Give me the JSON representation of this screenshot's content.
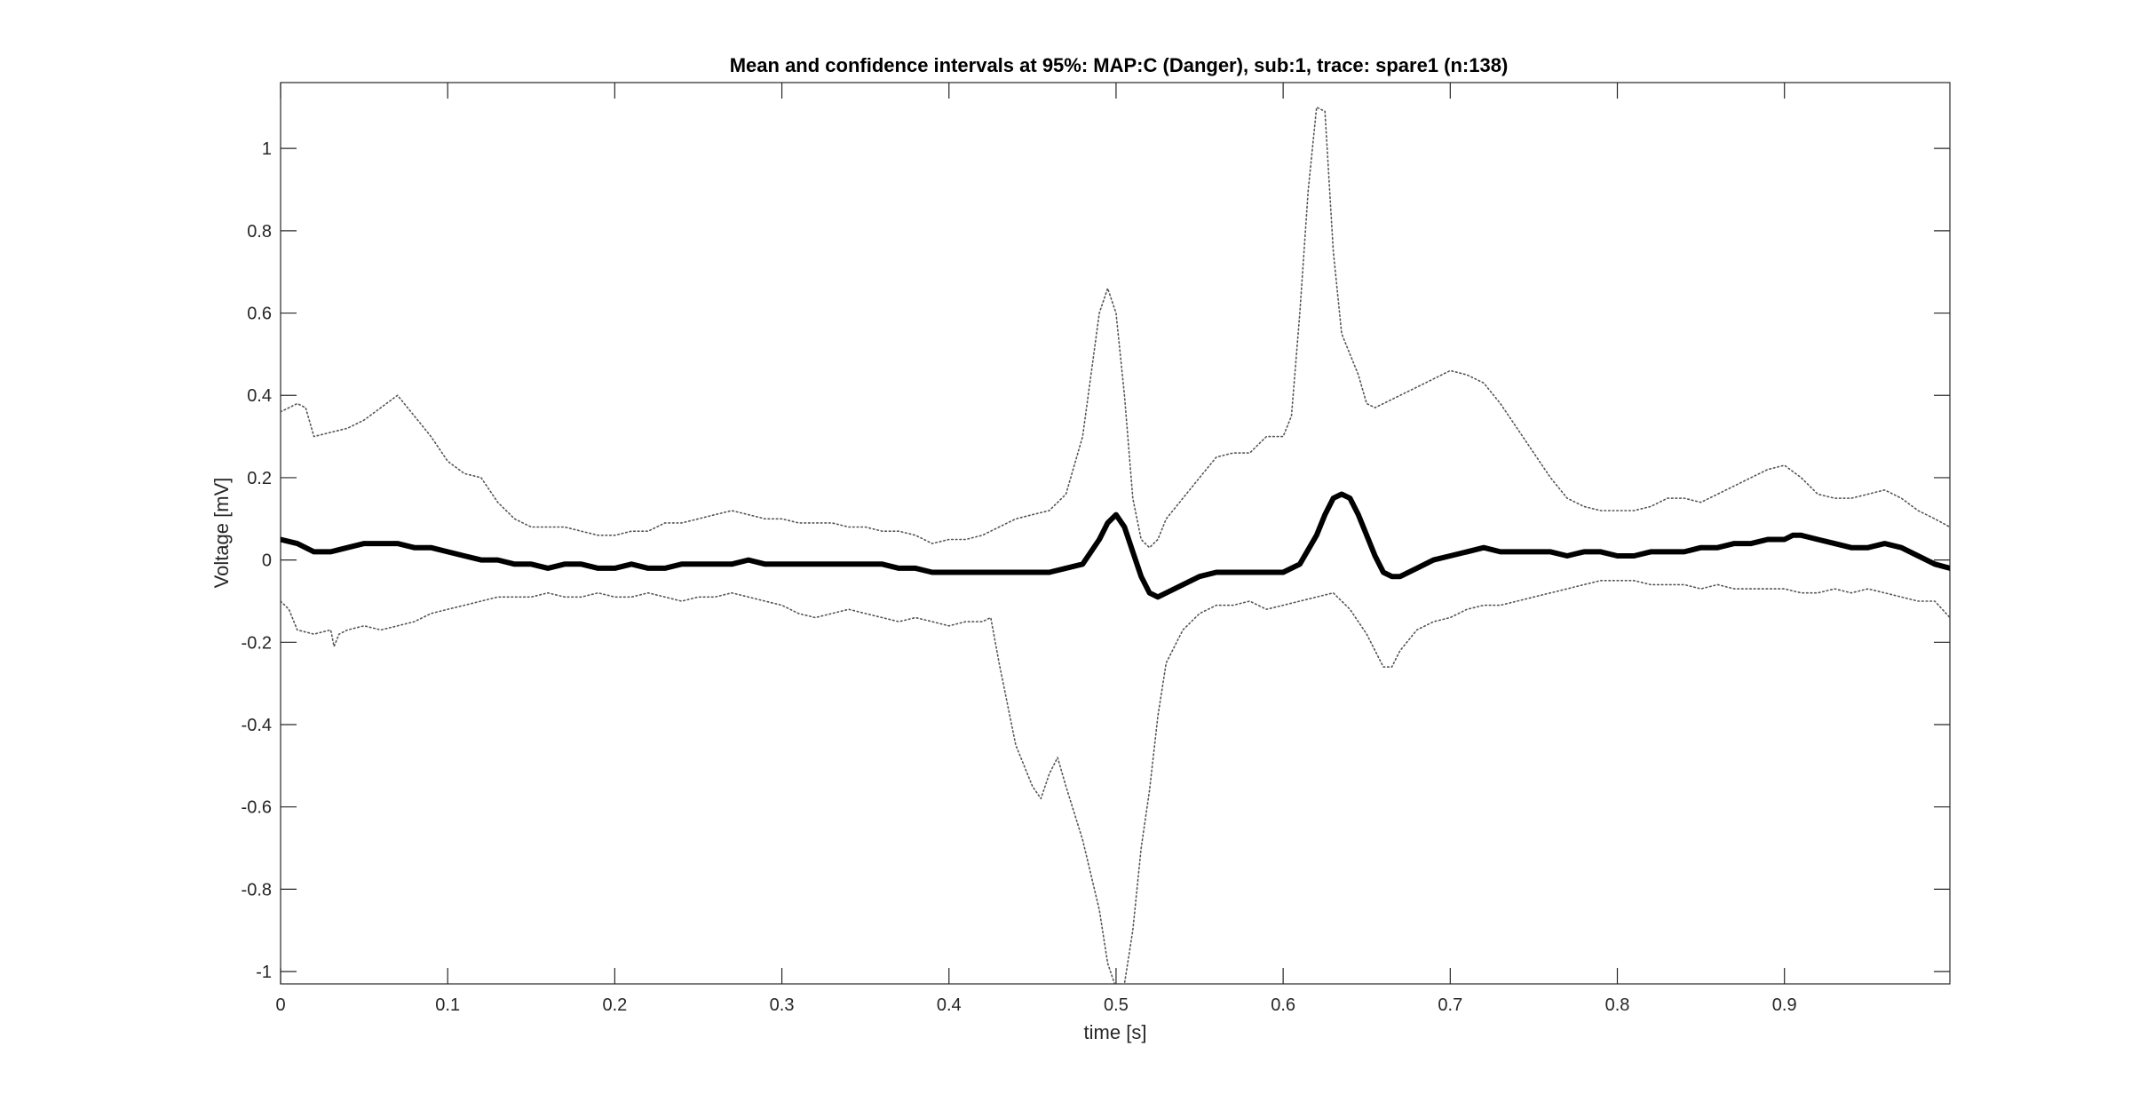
{
  "chart_data": {
    "type": "line",
    "title": "Mean and confidence intervals at 95%: MAP:C (Danger), sub:1, trace: spare1 (n:138)",
    "xlabel": "time [s]",
    "ylabel": "Voltage [mV]",
    "xlim": [
      0,
      0.999
    ],
    "ylim": [
      -1.03,
      1.16
    ],
    "xticks": [
      0,
      0.1,
      0.2,
      0.3,
      0.4,
      0.5,
      0.6,
      0.7,
      0.8,
      0.9
    ],
    "xtick_labels": [
      "0",
      "0.1",
      "0.2",
      "0.3",
      "0.4",
      "0.5",
      "0.6",
      "0.7",
      "0.8",
      "0.9"
    ],
    "yticks": [
      -1,
      -0.8,
      -0.6,
      -0.4,
      -0.2,
      0,
      0.2,
      0.4,
      0.6,
      0.8,
      1
    ],
    "ytick_labels": [
      "-1",
      "-0.8",
      "-0.6",
      "-0.4",
      "-0.2",
      "0",
      "0.2",
      "0.4",
      "0.6",
      "0.8",
      "1"
    ],
    "grid": false,
    "colors": {
      "mean": "#000000",
      "ci": "#555555",
      "axes": "#262626"
    },
    "series": [
      {
        "role": "mean",
        "style": "solid-thick",
        "x": [
          0,
          0.01,
          0.02,
          0.03,
          0.04,
          0.05,
          0.06,
          0.07,
          0.08,
          0.09,
          0.1,
          0.11,
          0.12,
          0.13,
          0.14,
          0.15,
          0.16,
          0.17,
          0.18,
          0.19,
          0.2,
          0.21,
          0.22,
          0.23,
          0.24,
          0.25,
          0.26,
          0.27,
          0.28,
          0.29,
          0.3,
          0.31,
          0.32,
          0.33,
          0.34,
          0.35,
          0.36,
          0.37,
          0.38,
          0.39,
          0.4,
          0.41,
          0.42,
          0.43,
          0.44,
          0.45,
          0.46,
          0.47,
          0.48,
          0.49,
          0.495,
          0.5,
          0.505,
          0.51,
          0.515,
          0.52,
          0.525,
          0.53,
          0.54,
          0.55,
          0.56,
          0.57,
          0.58,
          0.59,
          0.6,
          0.61,
          0.62,
          0.625,
          0.63,
          0.635,
          0.64,
          0.645,
          0.65,
          0.655,
          0.66,
          0.665,
          0.67,
          0.68,
          0.69,
          0.7,
          0.71,
          0.72,
          0.73,
          0.74,
          0.75,
          0.76,
          0.77,
          0.78,
          0.79,
          0.8,
          0.81,
          0.82,
          0.83,
          0.84,
          0.85,
          0.86,
          0.87,
          0.88,
          0.89,
          0.9,
          0.905,
          0.91,
          0.92,
          0.93,
          0.94,
          0.95,
          0.96,
          0.97,
          0.98,
          0.99,
          0.999
        ],
        "y": [
          0.05,
          0.04,
          0.02,
          0.02,
          0.03,
          0.04,
          0.04,
          0.04,
          0.03,
          0.03,
          0.02,
          0.01,
          0.0,
          0.0,
          -0.01,
          -0.01,
          -0.02,
          -0.01,
          -0.01,
          -0.02,
          -0.02,
          -0.01,
          -0.02,
          -0.02,
          -0.01,
          -0.01,
          -0.01,
          -0.01,
          0.0,
          -0.01,
          -0.01,
          -0.01,
          -0.01,
          -0.01,
          -0.01,
          -0.01,
          -0.01,
          -0.02,
          -0.02,
          -0.03,
          -0.03,
          -0.03,
          -0.03,
          -0.03,
          -0.03,
          -0.03,
          -0.03,
          -0.02,
          -0.01,
          0.05,
          0.09,
          0.11,
          0.08,
          0.02,
          -0.04,
          -0.08,
          -0.09,
          -0.08,
          -0.06,
          -0.04,
          -0.03,
          -0.03,
          -0.03,
          -0.03,
          -0.03,
          -0.01,
          0.06,
          0.11,
          0.15,
          0.16,
          0.15,
          0.11,
          0.06,
          0.01,
          -0.03,
          -0.04,
          -0.04,
          -0.02,
          0.0,
          0.01,
          0.02,
          0.03,
          0.02,
          0.02,
          0.02,
          0.02,
          0.01,
          0.02,
          0.02,
          0.01,
          0.01,
          0.02,
          0.02,
          0.02,
          0.03,
          0.03,
          0.04,
          0.04,
          0.05,
          0.05,
          0.06,
          0.06,
          0.05,
          0.04,
          0.03,
          0.03,
          0.04,
          0.03,
          0.01,
          -0.01,
          -0.02
        ]
      },
      {
        "role": "upper-ci",
        "style": "dotted",
        "x": [
          0,
          0.01,
          0.015,
          0.02,
          0.03,
          0.04,
          0.05,
          0.06,
          0.07,
          0.08,
          0.09,
          0.1,
          0.11,
          0.12,
          0.13,
          0.14,
          0.15,
          0.16,
          0.17,
          0.18,
          0.19,
          0.2,
          0.21,
          0.22,
          0.23,
          0.24,
          0.25,
          0.26,
          0.27,
          0.28,
          0.29,
          0.3,
          0.31,
          0.32,
          0.33,
          0.34,
          0.35,
          0.36,
          0.37,
          0.38,
          0.39,
          0.4,
          0.41,
          0.42,
          0.43,
          0.44,
          0.45,
          0.46,
          0.47,
          0.48,
          0.485,
          0.49,
          0.495,
          0.5,
          0.505,
          0.51,
          0.515,
          0.52,
          0.525,
          0.53,
          0.54,
          0.55,
          0.56,
          0.57,
          0.58,
          0.59,
          0.6,
          0.605,
          0.61,
          0.615,
          0.62,
          0.625,
          0.63,
          0.635,
          0.64,
          0.645,
          0.65,
          0.655,
          0.66,
          0.67,
          0.68,
          0.69,
          0.7,
          0.71,
          0.72,
          0.73,
          0.74,
          0.75,
          0.76,
          0.77,
          0.78,
          0.79,
          0.8,
          0.81,
          0.82,
          0.83,
          0.84,
          0.85,
          0.86,
          0.87,
          0.88,
          0.89,
          0.9,
          0.91,
          0.92,
          0.93,
          0.94,
          0.95,
          0.96,
          0.97,
          0.98,
          0.99,
          0.999
        ],
        "y": [
          0.36,
          0.38,
          0.37,
          0.3,
          0.31,
          0.32,
          0.34,
          0.37,
          0.4,
          0.35,
          0.3,
          0.24,
          0.21,
          0.2,
          0.14,
          0.1,
          0.08,
          0.08,
          0.08,
          0.07,
          0.06,
          0.06,
          0.07,
          0.07,
          0.09,
          0.09,
          0.1,
          0.11,
          0.12,
          0.11,
          0.1,
          0.1,
          0.09,
          0.09,
          0.09,
          0.08,
          0.08,
          0.07,
          0.07,
          0.06,
          0.04,
          0.05,
          0.05,
          0.06,
          0.08,
          0.1,
          0.11,
          0.12,
          0.16,
          0.3,
          0.45,
          0.6,
          0.66,
          0.6,
          0.4,
          0.15,
          0.05,
          0.03,
          0.05,
          0.1,
          0.15,
          0.2,
          0.25,
          0.26,
          0.26,
          0.3,
          0.3,
          0.35,
          0.6,
          0.9,
          1.1,
          1.09,
          0.75,
          0.55,
          0.5,
          0.45,
          0.38,
          0.37,
          0.38,
          0.4,
          0.42,
          0.44,
          0.46,
          0.45,
          0.43,
          0.38,
          0.32,
          0.26,
          0.2,
          0.15,
          0.13,
          0.12,
          0.12,
          0.12,
          0.13,
          0.15,
          0.15,
          0.14,
          0.16,
          0.18,
          0.2,
          0.22,
          0.23,
          0.2,
          0.16,
          0.15,
          0.15,
          0.16,
          0.17,
          0.15,
          0.12,
          0.1,
          0.08
        ]
      },
      {
        "role": "lower-ci",
        "style": "dotted",
        "x": [
          0,
          0.005,
          0.01,
          0.02,
          0.03,
          0.032,
          0.035,
          0.04,
          0.05,
          0.06,
          0.07,
          0.08,
          0.09,
          0.1,
          0.11,
          0.12,
          0.13,
          0.14,
          0.15,
          0.16,
          0.17,
          0.18,
          0.19,
          0.2,
          0.21,
          0.22,
          0.23,
          0.24,
          0.25,
          0.26,
          0.27,
          0.28,
          0.29,
          0.3,
          0.31,
          0.32,
          0.33,
          0.34,
          0.35,
          0.36,
          0.37,
          0.38,
          0.39,
          0.4,
          0.41,
          0.42,
          0.425,
          0.43,
          0.44,
          0.45,
          0.455,
          0.46,
          0.465,
          0.47,
          0.48,
          0.49,
          0.495,
          0.5,
          0.505,
          0.51,
          0.515,
          0.52,
          0.525,
          0.53,
          0.54,
          0.55,
          0.56,
          0.57,
          0.58,
          0.59,
          0.6,
          0.61,
          0.62,
          0.63,
          0.64,
          0.65,
          0.66,
          0.665,
          0.67,
          0.68,
          0.69,
          0.7,
          0.71,
          0.72,
          0.73,
          0.74,
          0.75,
          0.76,
          0.77,
          0.78,
          0.79,
          0.8,
          0.81,
          0.82,
          0.83,
          0.84,
          0.85,
          0.86,
          0.87,
          0.88,
          0.89,
          0.9,
          0.91,
          0.92,
          0.93,
          0.94,
          0.95,
          0.96,
          0.97,
          0.98,
          0.99,
          0.999
        ],
        "y": [
          -0.1,
          -0.12,
          -0.17,
          -0.18,
          -0.17,
          -0.21,
          -0.18,
          -0.17,
          -0.16,
          -0.17,
          -0.16,
          -0.15,
          -0.13,
          -0.12,
          -0.11,
          -0.1,
          -0.09,
          -0.09,
          -0.09,
          -0.08,
          -0.09,
          -0.09,
          -0.08,
          -0.09,
          -0.09,
          -0.08,
          -0.09,
          -0.1,
          -0.09,
          -0.09,
          -0.08,
          -0.09,
          -0.1,
          -0.11,
          -0.13,
          -0.14,
          -0.13,
          -0.12,
          -0.13,
          -0.14,
          -0.15,
          -0.14,
          -0.15,
          -0.16,
          -0.15,
          -0.15,
          -0.14,
          -0.25,
          -0.45,
          -0.55,
          -0.58,
          -0.52,
          -0.48,
          -0.55,
          -0.68,
          -0.85,
          -0.98,
          -1.04,
          -1.03,
          -0.9,
          -0.7,
          -0.56,
          -0.38,
          -0.25,
          -0.17,
          -0.13,
          -0.11,
          -0.11,
          -0.1,
          -0.12,
          -0.11,
          -0.1,
          -0.09,
          -0.08,
          -0.12,
          -0.18,
          -0.26,
          -0.26,
          -0.22,
          -0.17,
          -0.15,
          -0.14,
          -0.12,
          -0.11,
          -0.11,
          -0.1,
          -0.09,
          -0.08,
          -0.07,
          -0.06,
          -0.05,
          -0.05,
          -0.05,
          -0.06,
          -0.06,
          -0.06,
          -0.07,
          -0.06,
          -0.07,
          -0.07,
          -0.07,
          -0.07,
          -0.08,
          -0.08,
          -0.07,
          -0.08,
          -0.07,
          -0.08,
          -0.09,
          -0.1,
          -0.1,
          -0.14
        ]
      }
    ]
  }
}
